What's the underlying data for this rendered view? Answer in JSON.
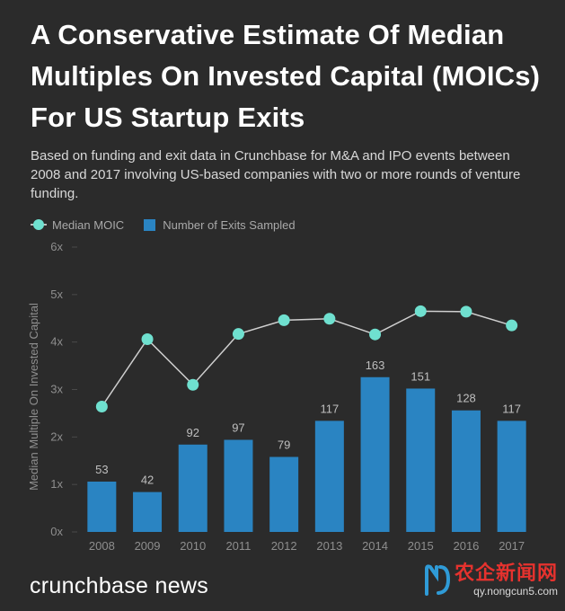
{
  "title": "A Conservative Estimate Of Median Multiples On Invested Capital (MOICs) For US Startup Exits",
  "subtitle": "Based on funding and exit data in Crunchbase for M&A and IPO events between 2008 and 2017 involving US-based companies with two or more rounds of venture funding.",
  "colors": {
    "bar": "#2a84c2",
    "line": "#cfcfcf",
    "marker": "#6fe0cf",
    "axis_text": "#8e8e8e",
    "bar_label": "#bfbfbf",
    "background": "#2b2b2b"
  },
  "chart_data": {
    "type": "bar",
    "title": "A Conservative Estimate Of Median Multiples On Invested Capital (MOICs) For US Startup Exits",
    "ylabel": "Median Multiple On Invested Capital",
    "xlabel": "",
    "categories": [
      "2008",
      "2009",
      "2010",
      "2011",
      "2012",
      "2013",
      "2014",
      "2015",
      "2016",
      "2017"
    ],
    "ylim": [
      0,
      6
    ],
    "yticks": [
      0,
      1,
      2,
      3,
      4,
      5,
      6
    ],
    "ytick_labels": [
      "0x",
      "1x",
      "2x",
      "3x",
      "4x",
      "5x",
      "6x"
    ],
    "legend": [
      "Median MOIC",
      "Number of Exits Sampled"
    ],
    "legend_position": "top-left",
    "series": [
      {
        "name": "Number of Exits Sampled",
        "kind": "bar",
        "counts": [
          53,
          42,
          92,
          97,
          79,
          117,
          163,
          151,
          128,
          117
        ],
        "values": [
          1.06,
          0.84,
          1.84,
          1.94,
          1.58,
          2.34,
          3.26,
          3.02,
          2.56,
          2.34
        ]
      },
      {
        "name": "Median MOIC",
        "kind": "line",
        "values": [
          2.64,
          4.06,
          3.1,
          4.17,
          4.46,
          4.49,
          4.16,
          4.65,
          4.64,
          4.35
        ]
      }
    ]
  },
  "footer": {
    "brand": "crunchbase news"
  },
  "watermark": {
    "name": "农企新闻网",
    "url": "qy.nongcun5.com"
  }
}
